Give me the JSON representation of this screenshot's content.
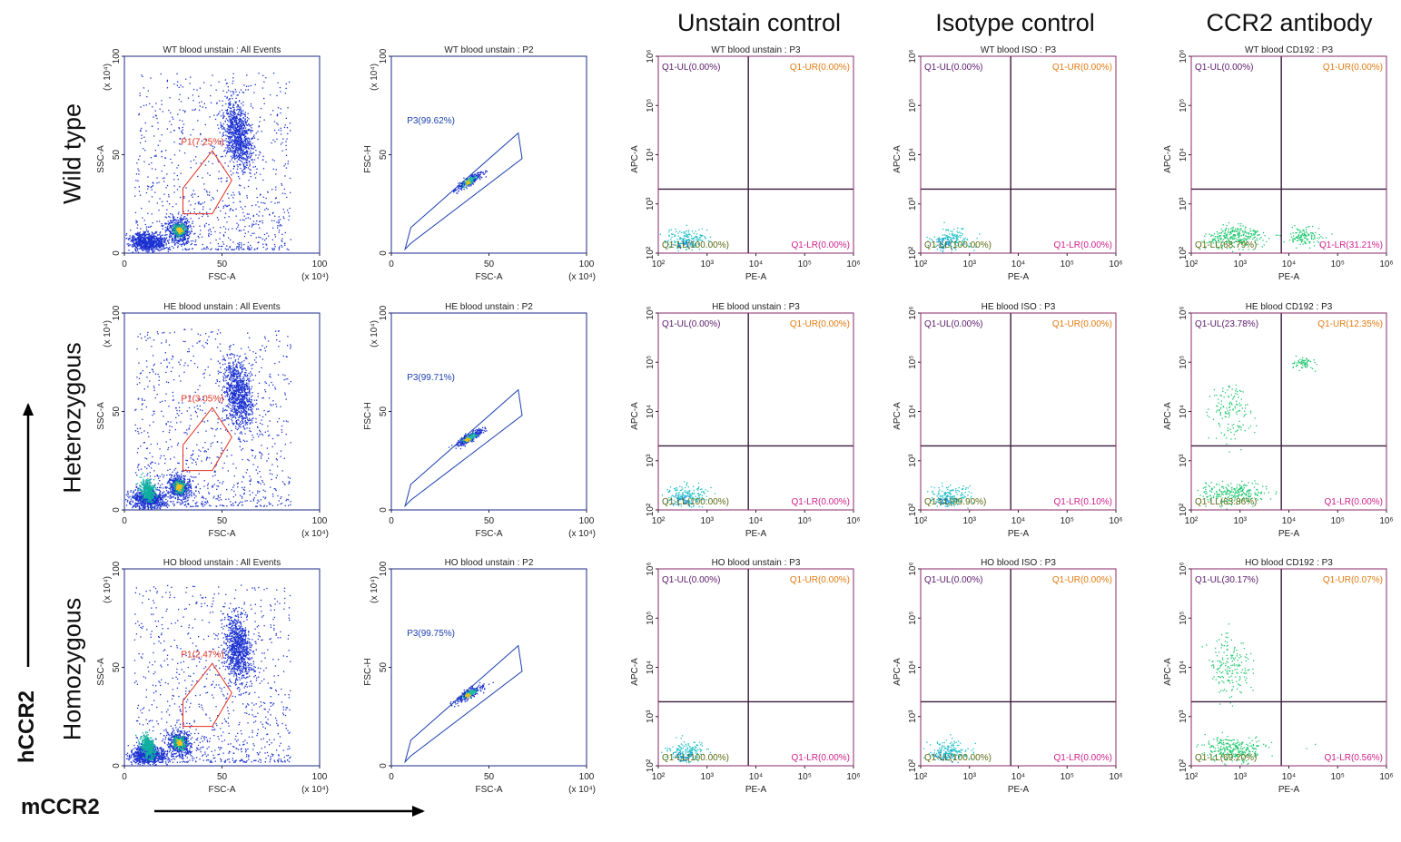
{
  "figure": {
    "column_headers": [
      "Unstain control",
      "Isotype control",
      "CCR2 antibody"
    ],
    "row_labels": [
      "Wild type",
      "Heterozygous",
      "Homozygous"
    ],
    "y_axis_label": "hCCR2",
    "x_axis_label": "mCCR2"
  },
  "chart_data": [
    {
      "type": "scatter",
      "row": 0,
      "kind": "fsc_ssc",
      "title": "WT blood unstain : All Events",
      "xlabel": "FSC-A",
      "ylabel": "SSC-A",
      "x_ticks": [
        "0",
        "50",
        "100"
      ],
      "y_ticks": [
        "0",
        "50",
        "100"
      ],
      "x_unit": "(x 10⁴)",
      "y_unit": "(x 10⁴)",
      "xlim": [
        0,
        100
      ],
      "ylim": [
        0,
        100
      ],
      "gate": {
        "name": "P1",
        "label": "P1(7.25%)",
        "percent": 7.25
      }
    },
    {
      "type": "scatter",
      "row": 0,
      "kind": "fsc_fsch",
      "title": "WT blood unstain : P2",
      "xlabel": "FSC-A",
      "ylabel": "FSC-H",
      "x_ticks": [
        "0",
        "50",
        "100"
      ],
      "y_ticks": [
        "0",
        "50",
        "100"
      ],
      "x_unit": "(x 10⁴)",
      "y_unit": "(x 10⁴)",
      "xlim": [
        0,
        100
      ],
      "ylim": [
        0,
        100
      ],
      "gate": {
        "name": "P3",
        "label": "P3(99.62%)",
        "percent": 99.62
      }
    },
    {
      "type": "scatter",
      "row": 0,
      "kind": "quad",
      "title": "WT blood unstain : P3",
      "xlabel": "PE-A",
      "ylabel": "APC-A",
      "x_ticks": [
        "10²",
        "10³",
        "10⁴",
        "10⁵",
        "10⁶"
      ],
      "y_ticks": [
        "10²",
        "10³",
        "10⁴",
        "10⁵",
        "10⁶"
      ],
      "xlim": [
        100,
        1000000
      ],
      "ylim": [
        100,
        1000000
      ],
      "quadrants": {
        "UL": "Q1-UL(0.00%)",
        "UR": "Q1-UR(0.00%)",
        "LL": "Q1-LL(100.00%)",
        "LR": "Q1-LR(0.00%)"
      },
      "percent": {
        "UL": 0,
        "UR": 0,
        "LL": 100,
        "LR": 0
      }
    },
    {
      "type": "scatter",
      "row": 0,
      "kind": "quad",
      "title": "WT blood ISO : P3",
      "xlabel": "PE-A",
      "ylabel": "APC-A",
      "x_ticks": [
        "10²",
        "10³",
        "10⁴",
        "10⁵",
        "10⁶"
      ],
      "y_ticks": [
        "10²",
        "10³",
        "10⁴",
        "10⁵",
        "10⁶"
      ],
      "xlim": [
        100,
        1000000
      ],
      "ylim": [
        100,
        1000000
      ],
      "quadrants": {
        "UL": "Q1-UL(0.00%)",
        "UR": "Q1-UR(0.00%)",
        "LL": "Q1-LL(100.00%)",
        "LR": "Q1-LR(0.00%)"
      },
      "percent": {
        "UL": 0,
        "UR": 0,
        "LL": 100,
        "LR": 0
      }
    },
    {
      "type": "scatter",
      "row": 0,
      "kind": "quad",
      "title": "WT blood CD192 : P3",
      "xlabel": "PE-A",
      "ylabel": "APC-A",
      "x_ticks": [
        "10²",
        "10³",
        "10⁴",
        "10⁵",
        "10⁶"
      ],
      "y_ticks": [
        "10²",
        "10³",
        "10⁴",
        "10⁵",
        "10⁶"
      ],
      "xlim": [
        100,
        1000000
      ],
      "ylim": [
        100,
        1000000
      ],
      "quadrants": {
        "UL": "Q1-UL(0.00%)",
        "UR": "Q1-UR(0.00%)",
        "LL": "Q1-LL(68.79%)",
        "LR": "Q1-LR(31.21%)"
      },
      "percent": {
        "UL": 0,
        "UR": 0,
        "LL": 68.79,
        "LR": 31.21
      }
    },
    {
      "type": "scatter",
      "row": 1,
      "kind": "fsc_ssc",
      "title": "HE blood unstain : All Events",
      "xlabel": "FSC-A",
      "ylabel": "SSC-A",
      "x_ticks": [
        "0",
        "50",
        "100"
      ],
      "y_ticks": [
        "0",
        "50",
        "100"
      ],
      "x_unit": "(x 10⁴)",
      "y_unit": "(x 10⁴)",
      "xlim": [
        0,
        100
      ],
      "ylim": [
        0,
        100
      ],
      "gate": {
        "name": "P1",
        "label": "P1(3.05%)",
        "percent": 3.05
      }
    },
    {
      "type": "scatter",
      "row": 1,
      "kind": "fsc_fsch",
      "title": "HE blood unstain : P2",
      "xlabel": "FSC-A",
      "ylabel": "FSC-H",
      "x_ticks": [
        "0",
        "50",
        "100"
      ],
      "y_ticks": [
        "0",
        "50",
        "100"
      ],
      "x_unit": "(x 10⁴)",
      "y_unit": "(x 10⁴)",
      "xlim": [
        0,
        100
      ],
      "ylim": [
        0,
        100
      ],
      "gate": {
        "name": "P3",
        "label": "P3(99.71%)",
        "percent": 99.71
      }
    },
    {
      "type": "scatter",
      "row": 1,
      "kind": "quad",
      "title": "HE blood unstain : P3",
      "xlabel": "PE-A",
      "ylabel": "APC-A",
      "x_ticks": [
        "10²",
        "10³",
        "10⁴",
        "10⁵",
        "10⁶"
      ],
      "y_ticks": [
        "10²",
        "10³",
        "10⁴",
        "10⁵",
        "10⁶"
      ],
      "xlim": [
        100,
        1000000
      ],
      "ylim": [
        100,
        1000000
      ],
      "quadrants": {
        "UL": "Q1-UL(0.00%)",
        "UR": "Q1-UR(0.00%)",
        "LL": "Q1-LL(100.00%)",
        "LR": "Q1-LR(0.00%)"
      },
      "percent": {
        "UL": 0,
        "UR": 0,
        "LL": 100,
        "LR": 0
      }
    },
    {
      "type": "scatter",
      "row": 1,
      "kind": "quad",
      "title": "HE blood ISO : P3",
      "xlabel": "PE-A",
      "ylabel": "APC-A",
      "x_ticks": [
        "10²",
        "10³",
        "10⁴",
        "10⁵",
        "10⁶"
      ],
      "y_ticks": [
        "10²",
        "10³",
        "10⁴",
        "10⁵",
        "10⁶"
      ],
      "xlim": [
        100,
        1000000
      ],
      "ylim": [
        100,
        1000000
      ],
      "quadrants": {
        "UL": "Q1-UL(0.00%)",
        "UR": "Q1-UR(0.00%)",
        "LL": "Q1-LL(99.90%)",
        "LR": "Q1-LR(0.10%)"
      },
      "percent": {
        "UL": 0,
        "UR": 0,
        "LL": 99.9,
        "LR": 0.1
      }
    },
    {
      "type": "scatter",
      "row": 1,
      "kind": "quad",
      "title": "HE blood CD192 : P3",
      "xlabel": "PE-A",
      "ylabel": "APC-A",
      "x_ticks": [
        "10²",
        "10³",
        "10⁴",
        "10⁵",
        "10⁶"
      ],
      "y_ticks": [
        "10²",
        "10³",
        "10⁴",
        "10⁵",
        "10⁶"
      ],
      "xlim": [
        100,
        1000000
      ],
      "ylim": [
        100,
        1000000
      ],
      "quadrants": {
        "UL": "Q1-UL(23.78%)",
        "UR": "Q1-UR(12.35%)",
        "LL": "Q1-LL(63.86%)",
        "LR": "Q1-LR(0.00%)"
      },
      "percent": {
        "UL": 23.78,
        "UR": 12.35,
        "LL": 63.86,
        "LR": 0
      }
    },
    {
      "type": "scatter",
      "row": 2,
      "kind": "fsc_ssc",
      "title": "HO blood unstain : All Events",
      "xlabel": "FSC-A",
      "ylabel": "SSC-A",
      "x_ticks": [
        "0",
        "50",
        "100"
      ],
      "y_ticks": [
        "0",
        "50",
        "100"
      ],
      "x_unit": "(x 10⁴)",
      "y_unit": "(x 10⁴)",
      "xlim": [
        0,
        100
      ],
      "ylim": [
        0,
        100
      ],
      "gate": {
        "name": "P1",
        "label": "P1(2.47%)",
        "percent": 2.47
      }
    },
    {
      "type": "scatter",
      "row": 2,
      "kind": "fsc_fsch",
      "title": "HO blood unstain : P2",
      "xlabel": "FSC-A",
      "ylabel": "FSC-H",
      "x_ticks": [
        "0",
        "50",
        "100"
      ],
      "y_ticks": [
        "0",
        "50",
        "100"
      ],
      "x_unit": "(x 10⁴)",
      "y_unit": "(x 10⁴)",
      "xlim": [
        0,
        100
      ],
      "ylim": [
        0,
        100
      ],
      "gate": {
        "name": "P3",
        "label": "P3(99.75%)",
        "percent": 99.75
      }
    },
    {
      "type": "scatter",
      "row": 2,
      "kind": "quad",
      "title": "HO blood unstain : P3",
      "xlabel": "PE-A",
      "ylabel": "APC-A",
      "x_ticks": [
        "10²",
        "10³",
        "10⁴",
        "10⁵",
        "10⁶"
      ],
      "y_ticks": [
        "10²",
        "10³",
        "10⁴",
        "10⁵",
        "10⁶"
      ],
      "xlim": [
        100,
        1000000
      ],
      "ylim": [
        100,
        1000000
      ],
      "quadrants": {
        "UL": "Q1-UL(0.00%)",
        "UR": "Q1-UR(0.00%)",
        "LL": "Q1-LL(100.00%)",
        "LR": "Q1-LR(0.00%)"
      },
      "percent": {
        "UL": 0,
        "UR": 0,
        "LL": 100,
        "LR": 0
      }
    },
    {
      "type": "scatter",
      "row": 2,
      "kind": "quad",
      "title": "HO blood ISO : P3",
      "xlabel": "PE-A",
      "ylabel": "APC-A",
      "x_ticks": [
        "10²",
        "10³",
        "10⁴",
        "10⁵",
        "10⁶"
      ],
      "y_ticks": [
        "10²",
        "10³",
        "10⁴",
        "10⁵",
        "10⁶"
      ],
      "xlim": [
        100,
        1000000
      ],
      "ylim": [
        100,
        1000000
      ],
      "quadrants": {
        "UL": "Q1-UL(0.00%)",
        "UR": "Q1-UR(0.00%)",
        "LL": "Q1-LL(100.00%)",
        "LR": "Q1-LR(0.00%)"
      },
      "percent": {
        "UL": 0,
        "UR": 0,
        "LL": 100,
        "LR": 0
      }
    },
    {
      "type": "scatter",
      "row": 2,
      "kind": "quad",
      "title": "HO blood CD192 : P3",
      "xlabel": "PE-A",
      "ylabel": "APC-A",
      "x_ticks": [
        "10²",
        "10³",
        "10⁴",
        "10⁵",
        "10⁶"
      ],
      "y_ticks": [
        "10²",
        "10³",
        "10⁴",
        "10⁵",
        "10⁶"
      ],
      "xlim": [
        100,
        1000000
      ],
      "ylim": [
        100,
        1000000
      ],
      "quadrants": {
        "UL": "Q1-UL(30.17%)",
        "UR": "Q1-UR(0.07%)",
        "LL": "Q1-LL(69.20%)",
        "LR": "Q1-LR(0.56%)"
      },
      "percent": {
        "UL": 30.17,
        "UR": 0.07,
        "LL": 69.2,
        "LR": 0.56
      }
    }
  ],
  "colors": {
    "plot_border": "#1e2a8a",
    "quad_border": "#8a2a6a",
    "quad_line": "#3a1a3a",
    "gate_red": "#e0301e",
    "gate_blue": "#1a3fb0",
    "ul_text": "#5a1a6a",
    "ur_text": "#e07a10",
    "ll_text": "#5a6a10",
    "lr_text": "#d0208a",
    "dot_blue": "#1a30d0",
    "dot_green": "#20c870",
    "dot_cyan": "#20c0c8"
  }
}
